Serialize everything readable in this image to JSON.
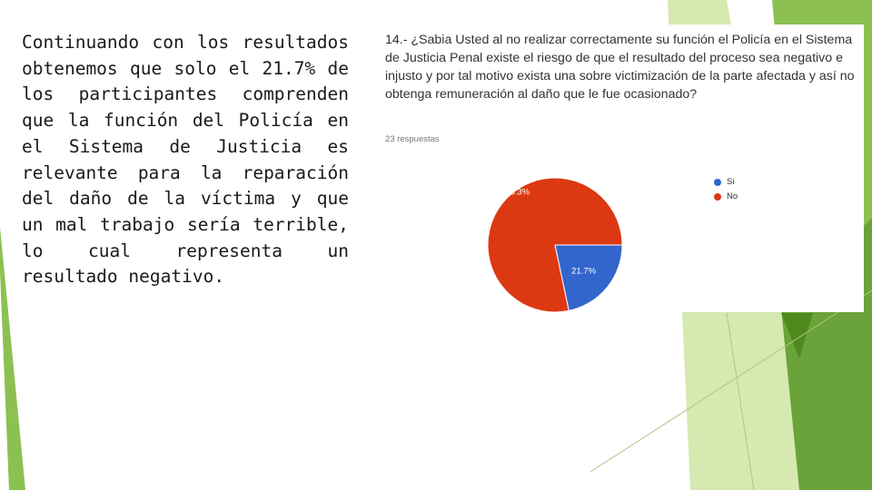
{
  "slide": {
    "body_text": "Continuando con los resultados obtenemos que solo el 21.7% de los participantes comprenden que la función del Policía en el Sistema de Justicia es relevante para la reparación del daño de la víctima y que un mal trabajo sería terrible, lo cual representa un resultado negativo."
  },
  "colors": {
    "green_light": "#c5e08f",
    "green_mid": "#8cc152",
    "green_dark": "#4f8a1f",
    "slice_si": "#3366cc",
    "slice_no": "#dc3912"
  },
  "chart_data": {
    "type": "pie",
    "title": "14.- ¿Sabia Usted al no realizar correctamente su función el Policía en el Sistema de Justicia Penal existe el riesgo de que el resultado del proceso sea negativo e injusto y por tal motivo exista una sobre victimización de la parte afectada y así no obtenga remuneración al daño que le fue ocasionado?",
    "subtitle": "23 respuestas",
    "categories": [
      "Si",
      "No"
    ],
    "values": [
      21.7,
      78.3
    ],
    "labels": [
      "21.7%",
      "78.3%"
    ],
    "colors": [
      "#3366cc",
      "#dc3912"
    ],
    "legend_position": "right"
  }
}
